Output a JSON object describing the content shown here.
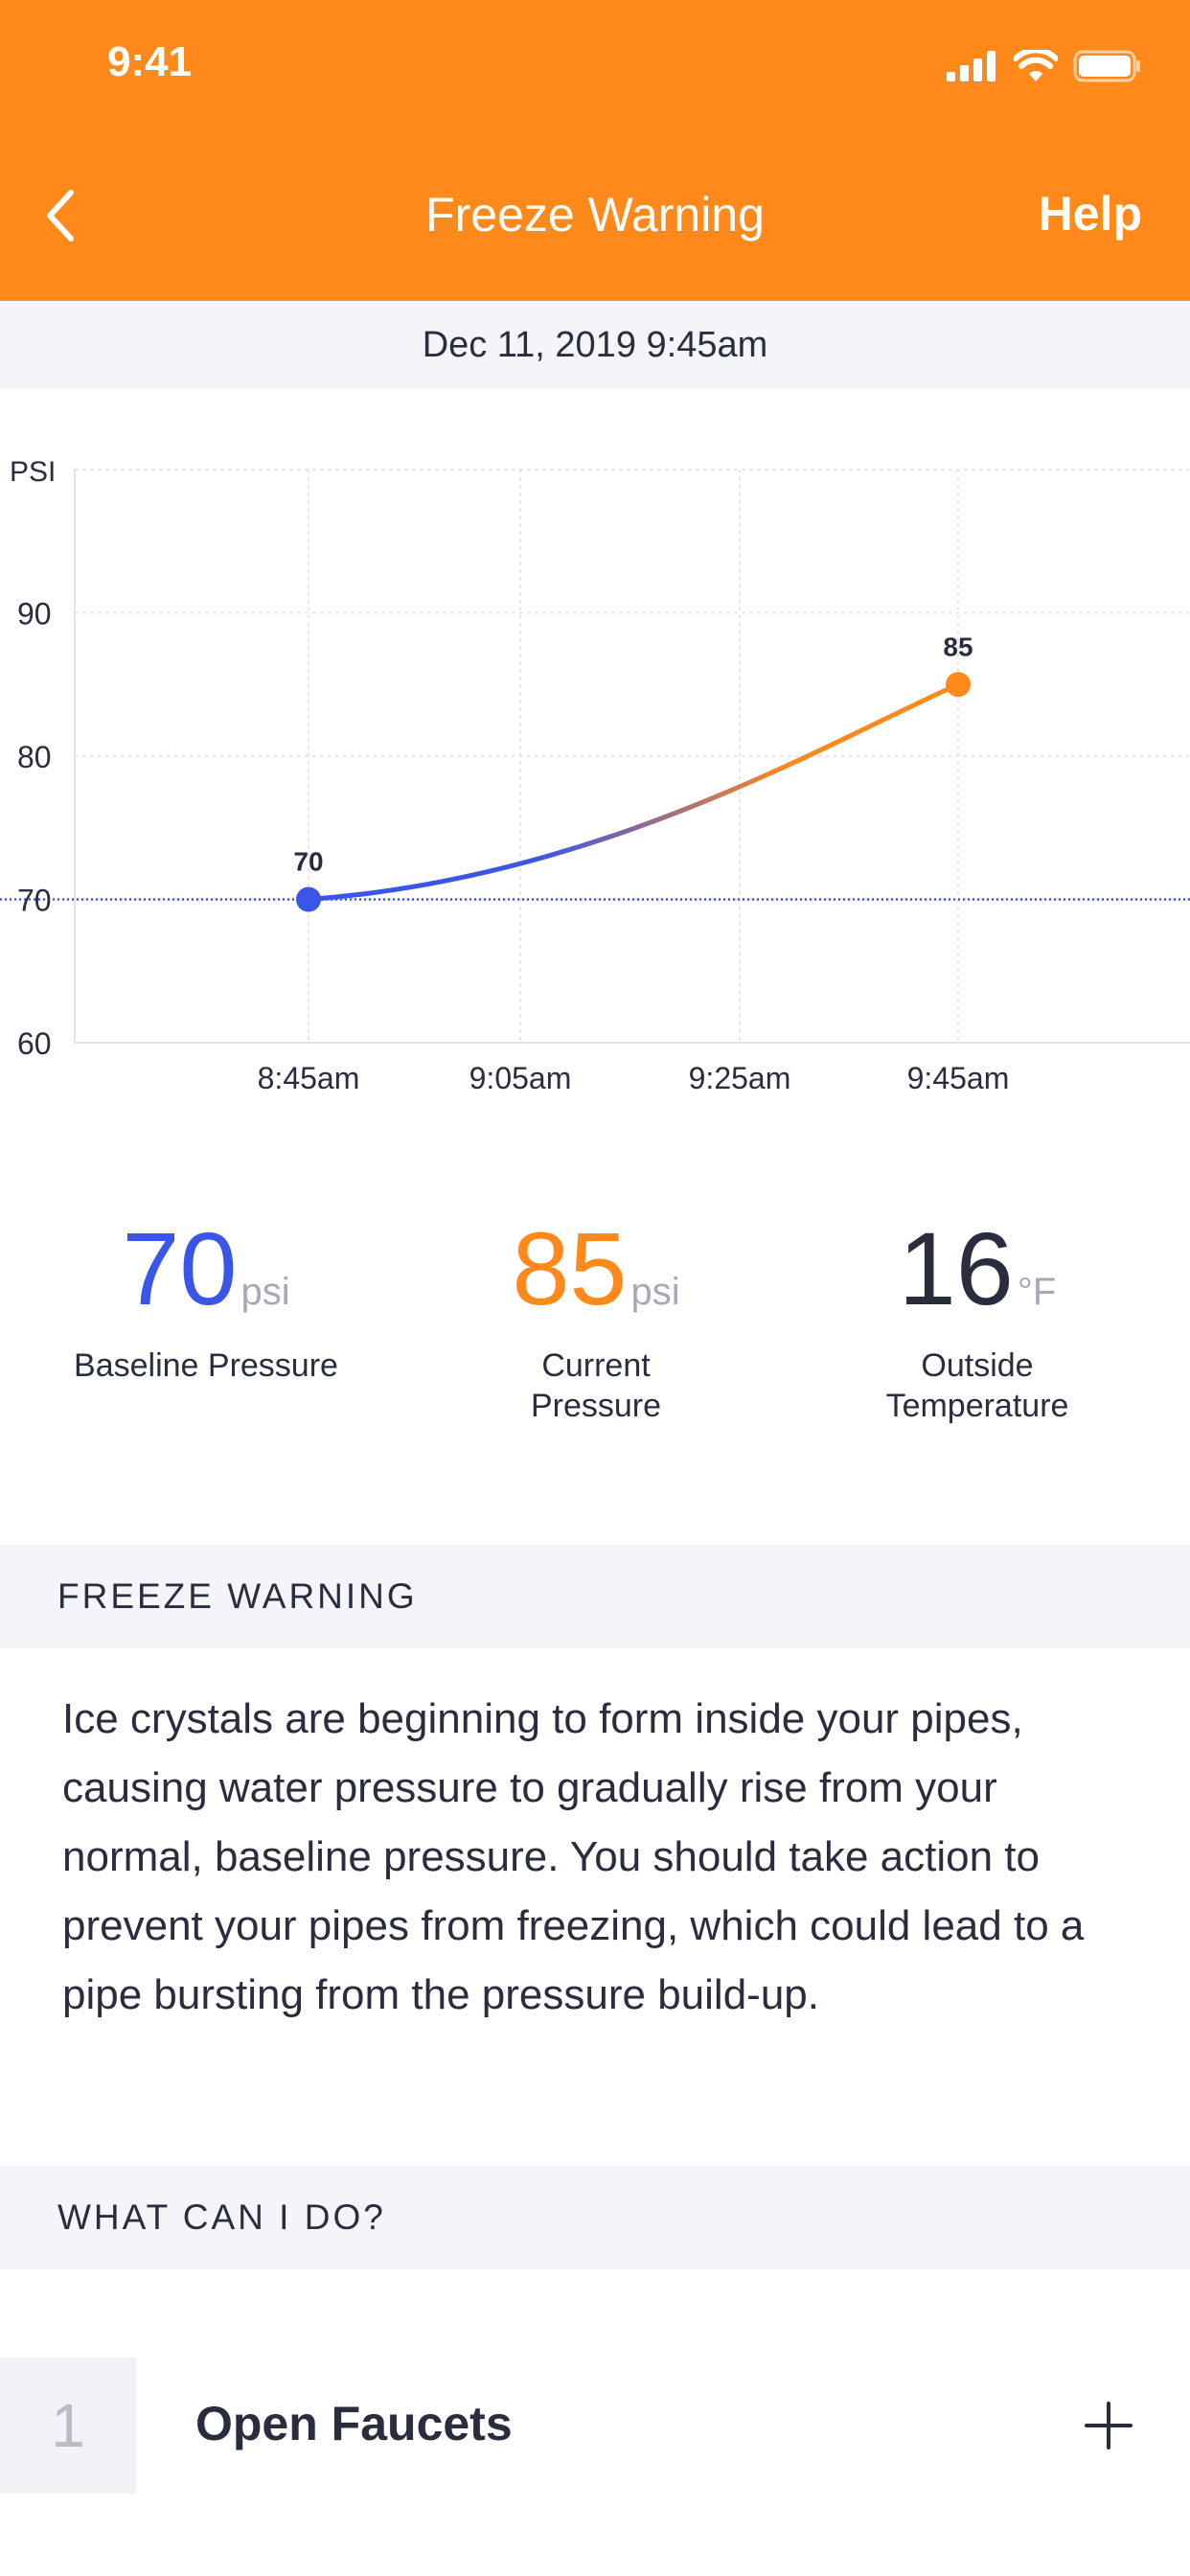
{
  "status_bar": {
    "time": "9:41"
  },
  "nav": {
    "title": "Freeze Warning",
    "help": "Help"
  },
  "date": "Dec 11, 2019 9:45am",
  "chart_data": {
    "type": "line",
    "y_label": "PSI",
    "ylim": [
      60,
      100
    ],
    "y_ticks": [
      "60",
      "70",
      "80",
      "90"
    ],
    "x_ticks": [
      "8:45am",
      "9:05am",
      "9:25am",
      "9:45am"
    ],
    "series": [
      {
        "x": [
          "8:45am",
          "9:45am"
        ],
        "values": [
          70,
          85
        ],
        "point_labels": [
          "70",
          "85"
        ]
      }
    ],
    "baseline": 70,
    "colors": {
      "start": "#3a56e8",
      "end": "#ff8a1b",
      "baseline": "#3a56e8"
    },
    "grid": true
  },
  "stats": {
    "baseline": {
      "value": "70",
      "unit": "psi",
      "label": "Baseline Pressure",
      "color": "#3a56e8"
    },
    "current": {
      "value": "85",
      "unit": "psi",
      "label_line1": "Current",
      "label_line2": "Pressure",
      "color": "#ff8a1b"
    },
    "outside": {
      "value": "16",
      "unit": "°F",
      "label_line1": "Outside",
      "label_line2": "Temperature",
      "color": "#2a2d3e"
    }
  },
  "freeze_section": {
    "heading": "FREEZE WARNING",
    "body": "Ice crystals are beginning to form inside your pipes, causing water pressure to gradually rise from your normal, baseline pressure. You should take action to prevent your pipes from freezing, which could lead to a pipe bursting from the pressure build-up."
  },
  "actions_section": {
    "heading": "WHAT CAN I DO?",
    "steps": [
      {
        "number": "1",
        "title": "Open Faucets"
      }
    ]
  }
}
